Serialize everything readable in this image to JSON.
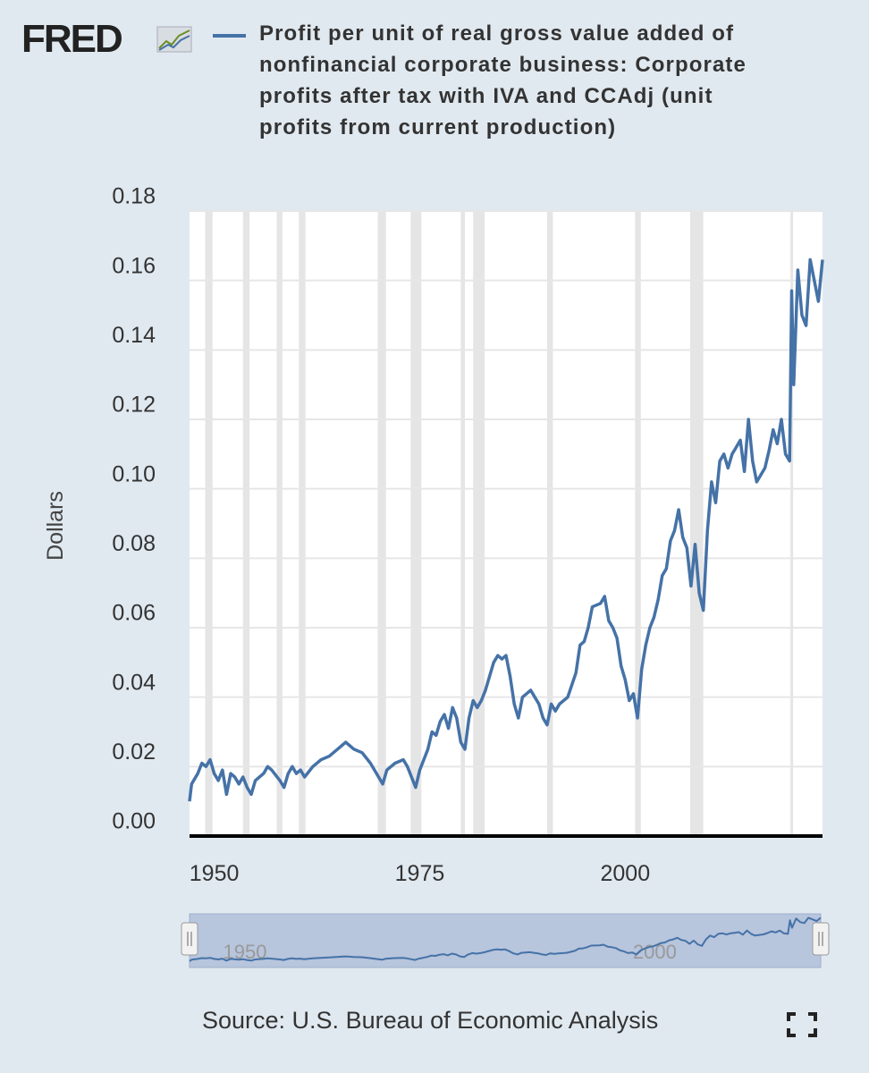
{
  "logo": "FRED",
  "chart_data": {
    "type": "line",
    "title": "Profit per unit of real gross value added of nonfinancial corporate business: Corporate profits after tax with IVA and CCAdj (unit profits from current production)",
    "y_label": "Dollars",
    "source": "Source: U.S. Bureau of Economic Analysis",
    "xlim": [
      1947,
      2024
    ],
    "xticks": [
      1950,
      1975,
      2000
    ],
    "ylim": [
      0,
      0.18
    ],
    "yticks": [
      {
        "value": 0,
        "label": "0.00"
      },
      {
        "value": 0.02,
        "label": "0.02"
      },
      {
        "value": 0.04,
        "label": "0.04"
      },
      {
        "value": 0.06,
        "label": "0.06"
      },
      {
        "value": 0.08,
        "label": "0.08"
      },
      {
        "value": 0.1,
        "label": "0.10"
      },
      {
        "value": 0.12,
        "label": "0.12"
      },
      {
        "value": 0.14,
        "label": "0.14"
      },
      {
        "value": 0.16,
        "label": "0.16"
      },
      {
        "value": 0.18,
        "label": "0.18"
      }
    ],
    "grid": true,
    "recessions": [
      [
        1948.9,
        1949.8
      ],
      [
        1953.5,
        1954.3
      ],
      [
        1957.6,
        1958.3
      ],
      [
        1960.3,
        1961.1
      ],
      [
        1969.9,
        1970.9
      ],
      [
        1973.9,
        1975.2
      ],
      [
        1980.0,
        1980.5
      ],
      [
        1981.5,
        1982.9
      ],
      [
        1990.5,
        1991.2
      ],
      [
        2001.2,
        2001.9
      ],
      [
        2007.9,
        2009.5
      ],
      [
        2020.1,
        2020.4
      ]
    ],
    "navigator_xticks": [
      1950,
      2000
    ],
    "series": [
      {
        "name": "Profit per unit of real gross value added of nonfinancial corporate business: Corporate profits after tax with IVA and CCAdj (unit profits from current production)",
        "color": "#4572a7",
        "x": [
          1947.0,
          1947.25,
          1948,
          1948.5,
          1949,
          1949.5,
          1950,
          1950.5,
          1951,
          1951.5,
          1952,
          1952.5,
          1953,
          1953.5,
          1954,
          1954.5,
          1955,
          1956,
          1956.5,
          1957,
          1958,
          1958.5,
          1959,
          1959.5,
          1960,
          1960.5,
          1961,
          1962,
          1963,
          1964,
          1965,
          1966,
          1966.5,
          1967,
          1968,
          1969,
          1970,
          1970.5,
          1971,
          1972,
          1973,
          1973.5,
          1974,
          1974.5,
          1975,
          1976,
          1976.5,
          1977,
          1977.5,
          1978,
          1978.5,
          1979,
          1979.5,
          1980,
          1980.5,
          1981,
          1981.5,
          1982,
          1982.5,
          1983,
          1984,
          1984.5,
          1985,
          1985.5,
          1986,
          1986.5,
          1987,
          1987.5,
          1988,
          1988.5,
          1989,
          1989.5,
          1990,
          1990.5,
          1991,
          1991.5,
          1992,
          1993,
          1994,
          1994.5,
          1995,
          1995.5,
          1996,
          1997,
          1997.5,
          1998,
          1998.5,
          1999,
          1999.5,
          2000,
          2000.5,
          2001,
          2001.5,
          2002,
          2002.5,
          2003,
          2003.5,
          2004,
          2004.5,
          2005,
          2005.5,
          2006,
          2006.5,
          2007,
          2007.5,
          2008,
          2008.5,
          2009,
          2009.5,
          2010,
          2010.5,
          2011,
          2011.5,
          2012,
          2012.5,
          2013,
          2013.5,
          2014,
          2014.5,
          2015,
          2015.5,
          2016,
          2016.5,
          2017,
          2017.5,
          2018,
          2018.5,
          2019,
          2019.5,
          2020,
          2020.25,
          2020.5,
          2021,
          2021.5,
          2022,
          2022.5,
          2023,
          2023.5,
          2024
        ],
        "values": [
          0.01,
          0.015,
          0.018,
          0.021,
          0.02,
          0.022,
          0.018,
          0.016,
          0.019,
          0.012,
          0.018,
          0.017,
          0.015,
          0.017,
          0.014,
          0.012,
          0.016,
          0.018,
          0.02,
          0.019,
          0.016,
          0.014,
          0.018,
          0.02,
          0.018,
          0.019,
          0.017,
          0.02,
          0.022,
          0.023,
          0.025,
          0.027,
          0.026,
          0.025,
          0.024,
          0.021,
          0.017,
          0.015,
          0.019,
          0.021,
          0.022,
          0.02,
          0.017,
          0.014,
          0.019,
          0.025,
          0.03,
          0.029,
          0.033,
          0.035,
          0.031,
          0.037,
          0.034,
          0.027,
          0.025,
          0.034,
          0.039,
          0.037,
          0.039,
          0.042,
          0.05,
          0.052,
          0.051,
          0.052,
          0.046,
          0.038,
          0.034,
          0.04,
          0.041,
          0.042,
          0.04,
          0.038,
          0.034,
          0.032,
          0.038,
          0.036,
          0.038,
          0.04,
          0.047,
          0.055,
          0.056,
          0.06,
          0.066,
          0.067,
          0.069,
          0.062,
          0.06,
          0.057,
          0.049,
          0.045,
          0.039,
          0.041,
          0.034,
          0.048,
          0.055,
          0.06,
          0.063,
          0.068,
          0.075,
          0.077,
          0.085,
          0.088,
          0.094,
          0.086,
          0.083,
          0.072,
          0.084,
          0.07,
          0.065,
          0.088,
          0.102,
          0.096,
          0.108,
          0.11,
          0.106,
          0.11,
          0.112,
          0.114,
          0.105,
          0.12,
          0.108,
          0.102,
          0.104,
          0.106,
          0.111,
          0.117,
          0.113,
          0.12,
          0.11,
          0.108,
          0.157,
          0.13,
          0.163,
          0.15,
          0.147,
          0.166,
          0.16,
          0.154,
          0.166
        ]
      }
    ]
  }
}
